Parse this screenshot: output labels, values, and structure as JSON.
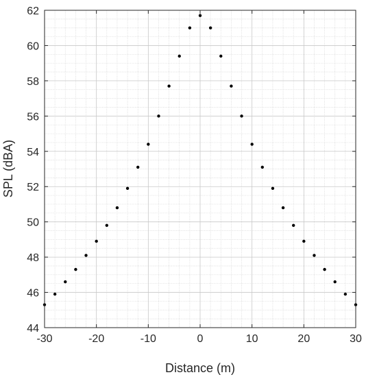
{
  "chart_data": {
    "type": "scatter",
    "title": "",
    "xlabel": "Distance (m)",
    "ylabel": "SPL (dBA)",
    "xlim": [
      -30,
      30
    ],
    "ylim": [
      44,
      62
    ],
    "x_ticks": [
      -30,
      -20,
      -10,
      0,
      10,
      20,
      30
    ],
    "y_ticks": [
      44,
      46,
      48,
      50,
      52,
      54,
      56,
      58,
      60,
      62
    ],
    "x_minor_step": 2,
    "y_minor_step": 0.5,
    "grid": true,
    "grid_minor": true,
    "legend": false,
    "marker_color": "#000000",
    "series": [
      {
        "x": [
          -30,
          -28,
          -26,
          -24,
          -22,
          -20,
          -18,
          -16,
          -14,
          -12,
          -10,
          -8,
          -6,
          -4,
          -2,
          0,
          2,
          4,
          6,
          8,
          10,
          12,
          14,
          16,
          18,
          20,
          22,
          24,
          26,
          28,
          30
        ],
        "y": [
          45.3,
          45.9,
          46.6,
          47.3,
          48.1,
          48.9,
          49.8,
          50.8,
          51.9,
          53.1,
          54.4,
          56.0,
          57.7,
          59.4,
          61.0,
          61.7,
          61.0,
          59.4,
          57.7,
          56.0,
          54.4,
          53.1,
          51.9,
          50.8,
          49.8,
          48.9,
          48.1,
          47.3,
          46.6,
          45.9,
          45.3
        ]
      }
    ]
  }
}
